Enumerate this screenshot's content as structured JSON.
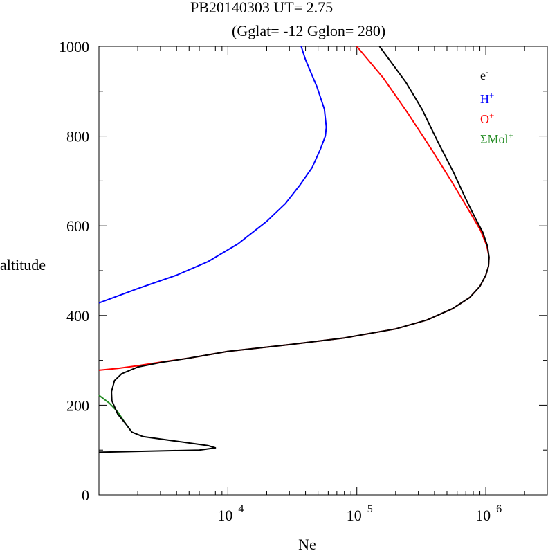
{
  "chart_data": {
    "type": "line",
    "title": "PB20140303   UT=  2.75",
    "subtitle": "(Gglat= -12   Gglon=  280)",
    "xlabel": "Ne",
    "ylabel": "altitude",
    "x_scale": "log",
    "xlim": [
      1000,
      3000000
    ],
    "ylim": [
      0,
      1000
    ],
    "y_ticks": [
      {
        "value": 0,
        "label": "0"
      },
      {
        "value": 200,
        "label": "200"
      },
      {
        "value": 400,
        "label": "400"
      },
      {
        "value": 600,
        "label": "600"
      },
      {
        "value": 800,
        "label": "800"
      },
      {
        "value": 1000,
        "label": "1000"
      }
    ],
    "x_ticks": [
      {
        "value": 10000,
        "base": "10",
        "exp": "4"
      },
      {
        "value": 100000,
        "base": "10",
        "exp": "5"
      },
      {
        "value": 1000000,
        "base": "10",
        "exp": "6"
      }
    ],
    "legend_position": "top-right",
    "series": [
      {
        "name": "e",
        "name_sup": "-",
        "color": "#000000",
        "points": [
          [
            1000,
            95
          ],
          [
            6000,
            100
          ],
          [
            8000,
            105
          ],
          [
            7000,
            110
          ],
          [
            2200,
            130
          ],
          [
            1800,
            140
          ],
          [
            1600,
            160
          ],
          [
            1400,
            180
          ],
          [
            1260,
            210
          ],
          [
            1250,
            230
          ],
          [
            1320,
            255
          ],
          [
            1500,
            270
          ],
          [
            2000,
            285
          ],
          [
            3000,
            295
          ],
          [
            5000,
            305
          ],
          [
            10000,
            320
          ],
          [
            30000,
            335
          ],
          [
            80000,
            350
          ],
          [
            200000,
            370
          ],
          [
            350000,
            390
          ],
          [
            550000,
            415
          ],
          [
            750000,
            440
          ],
          [
            900000,
            465
          ],
          [
            1000000,
            490
          ],
          [
            1050000,
            510
          ],
          [
            1060000,
            530
          ],
          [
            1030000,
            555
          ],
          [
            950000,
            585
          ],
          [
            820000,
            620
          ],
          [
            700000,
            660
          ],
          [
            560000,
            720
          ],
          [
            420000,
            790
          ],
          [
            320000,
            860
          ],
          [
            240000,
            920
          ],
          [
            150000,
            1000
          ]
        ]
      },
      {
        "name": "H",
        "name_sup": "+",
        "color": "#0000ff",
        "points": [
          [
            1000,
            428
          ],
          [
            2000,
            460
          ],
          [
            4000,
            490
          ],
          [
            7000,
            520
          ],
          [
            12000,
            560
          ],
          [
            20000,
            610
          ],
          [
            28000,
            650
          ],
          [
            36000,
            690
          ],
          [
            45000,
            730
          ],
          [
            52000,
            770
          ],
          [
            57000,
            800
          ],
          [
            58000,
            820
          ],
          [
            56000,
            860
          ],
          [
            49000,
            910
          ],
          [
            40000,
            970
          ],
          [
            37000,
            1000
          ]
        ]
      },
      {
        "name": "O",
        "name_sup": "+",
        "color": "#ff0000",
        "points": [
          [
            1000,
            278
          ],
          [
            1400,
            282
          ],
          [
            2000,
            288
          ],
          [
            3000,
            296
          ],
          [
            5000,
            305
          ],
          [
            10000,
            320
          ],
          [
            30000,
            335
          ],
          [
            80000,
            350
          ],
          [
            200000,
            370
          ],
          [
            350000,
            390
          ],
          [
            550000,
            415
          ],
          [
            750000,
            440
          ],
          [
            900000,
            465
          ],
          [
            1000000,
            490
          ],
          [
            1050000,
            510
          ],
          [
            1060000,
            530
          ],
          [
            1020000,
            555
          ],
          [
            910000,
            590
          ],
          [
            720000,
            640
          ],
          [
            540000,
            700
          ],
          [
            380000,
            770
          ],
          [
            250000,
            850
          ],
          [
            160000,
            930
          ],
          [
            100000,
            1000
          ]
        ]
      },
      {
        "name": "ΣMol",
        "name_sup": "+",
        "color": "#228b22",
        "points": [
          [
            1000,
            222
          ],
          [
            1200,
            205
          ],
          [
            1400,
            185
          ],
          [
            1600,
            160
          ],
          [
            1800,
            140
          ]
        ]
      }
    ]
  }
}
